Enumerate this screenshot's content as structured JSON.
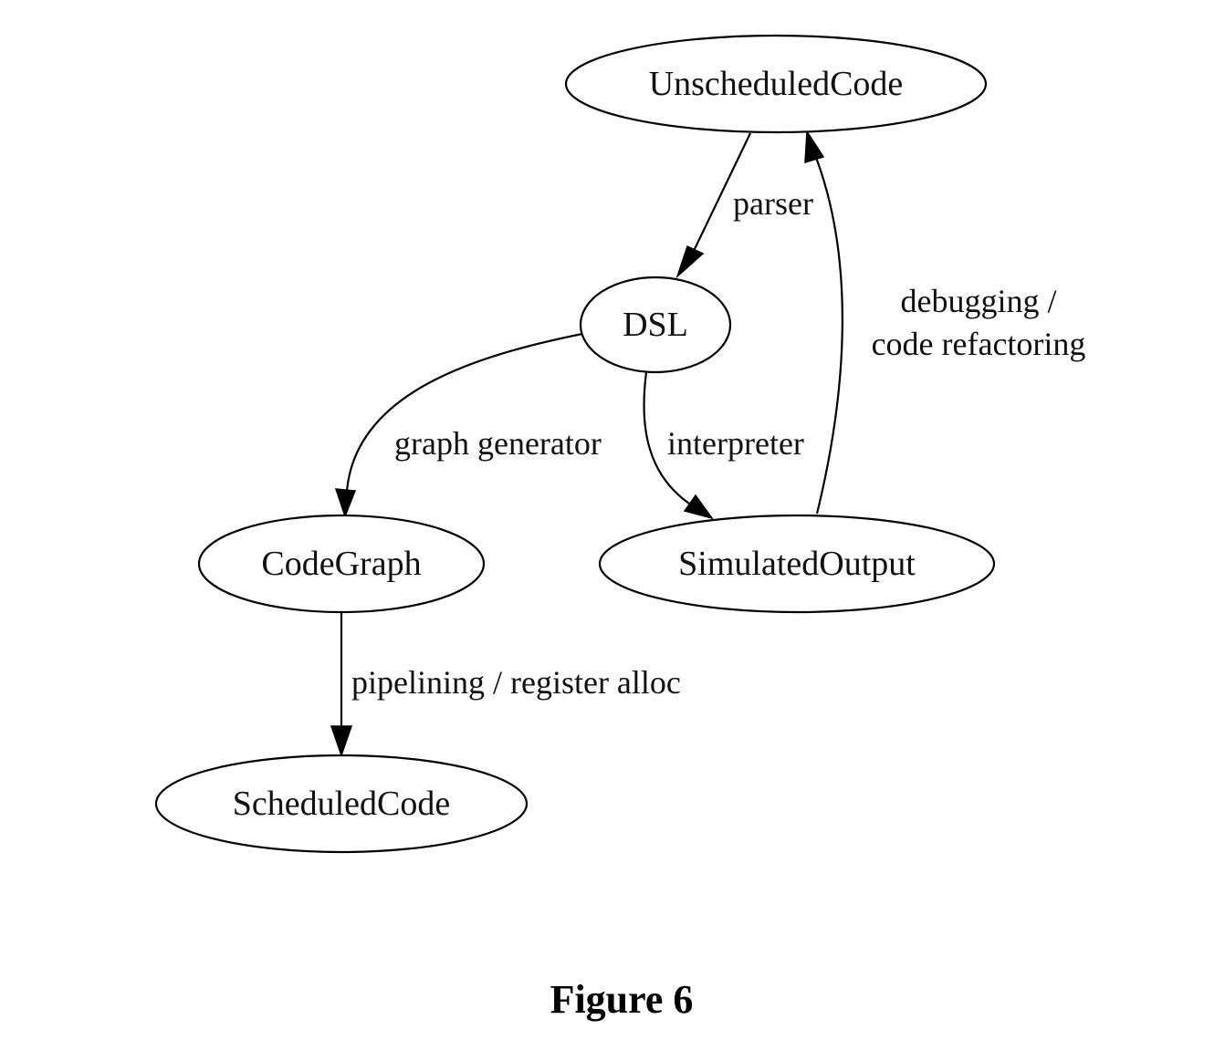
{
  "nodes": {
    "unscheduled": "UnscheduledCode",
    "dsl": "DSL",
    "codegraph": "CodeGraph",
    "simulated": "SimulatedOutput",
    "scheduled": "ScheduledCode"
  },
  "edges": {
    "parser": "parser",
    "graph_generator": "graph generator",
    "interpreter": "interpreter",
    "debugging_line1": "debugging /",
    "debugging_line2": "code refactoring",
    "pipelining": "pipelining / register alloc"
  },
  "caption": "Figure 6"
}
